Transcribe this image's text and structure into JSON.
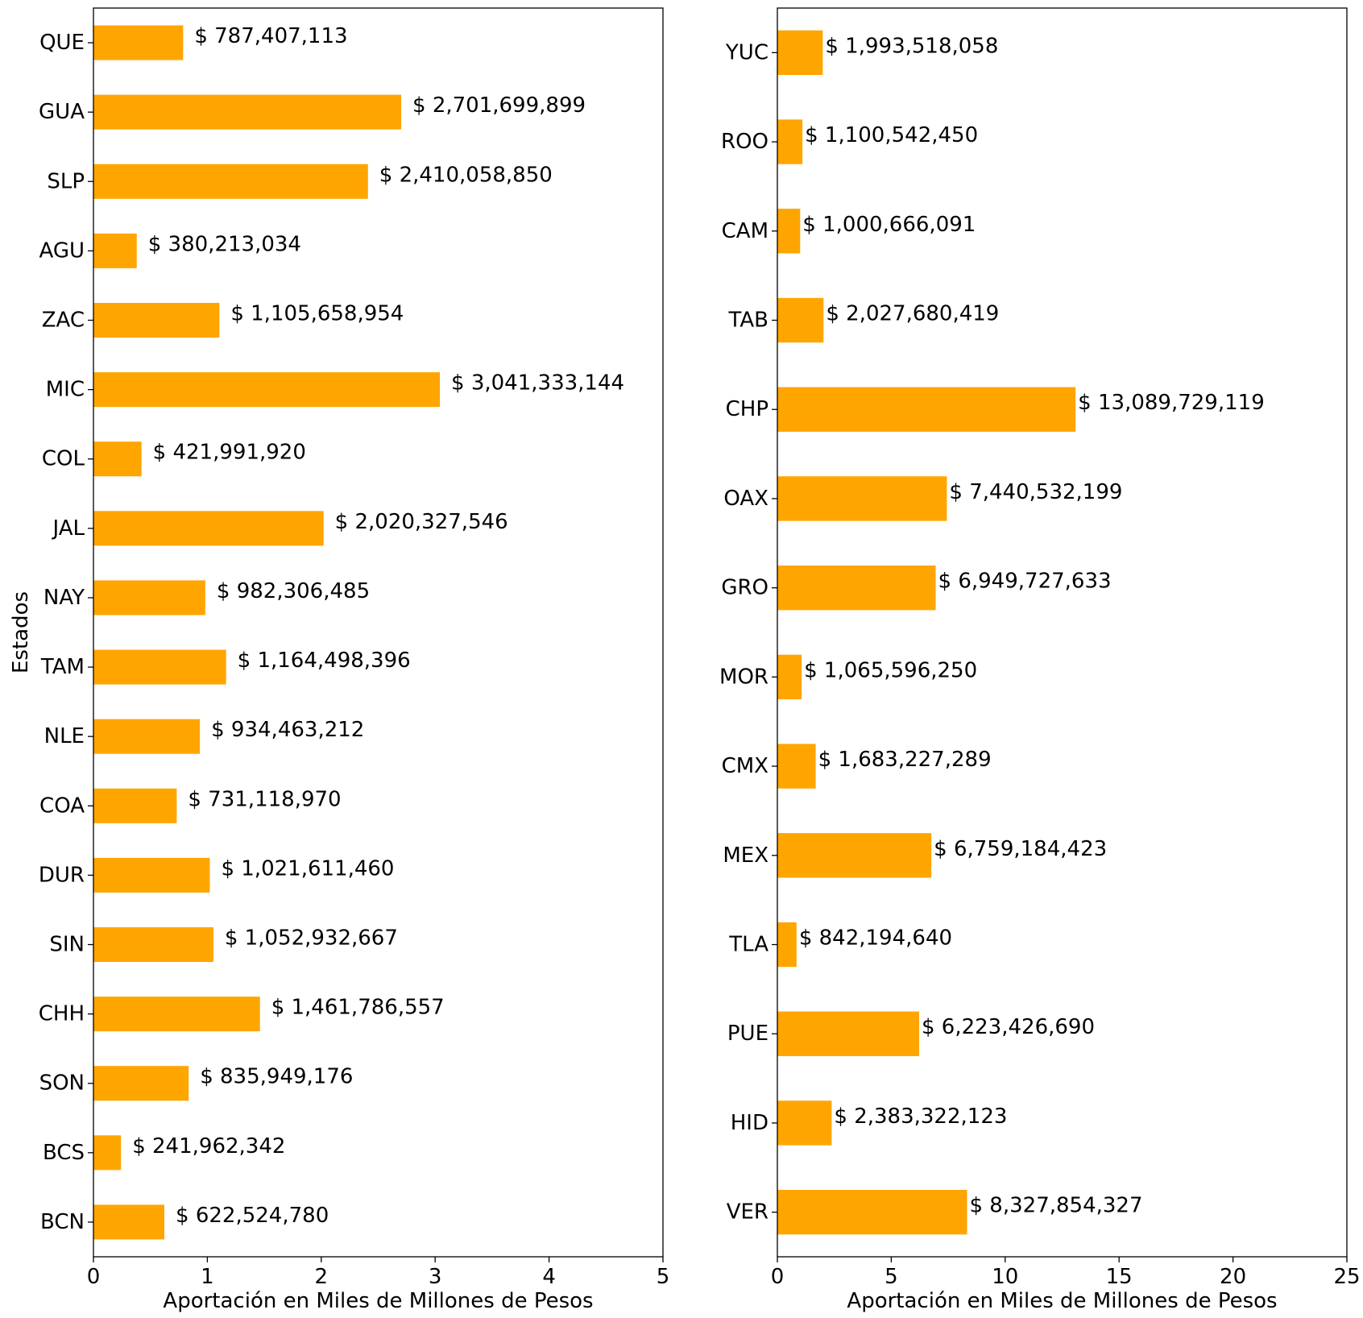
{
  "chart_data": [
    {
      "type": "bar",
      "orientation": "horizontal",
      "ylabel": "Estados",
      "xlabel": "Aportación en Miles de Millones de Pesos",
      "xlim": [
        0,
        5
      ],
      "xticks": [
        "0",
        "1",
        "2",
        "3",
        "4",
        "5"
      ],
      "grid": false,
      "bar_color": "#FFA500",
      "categories": [
        "QUE",
        "GUA",
        "SLP",
        "AGU",
        "ZAC",
        "MIC",
        "COL",
        "JAL",
        "NAY",
        "TAM",
        "NLE",
        "COA",
        "DUR",
        "SIN",
        "CHH",
        "SON",
        "BCS",
        "BCN"
      ],
      "values": [
        0.787407113,
        2.701699899,
        2.41005885,
        0.380213034,
        1.105658954,
        3.041333144,
        0.42199192,
        2.020327546,
        0.982306485,
        1.164498396,
        0.934463212,
        0.73111897,
        1.02161146,
        1.052932667,
        1.461786557,
        0.835949176,
        0.241962342,
        0.62252478
      ],
      "data_labels": [
        "$ 787,407,113",
        "$ 2,701,699,899",
        "$ 2,410,058,850",
        "$ 380,213,034",
        "$ 1,105,658,954",
        "$ 3,041,333,144",
        "$ 421,991,920",
        "$ 2,020,327,546",
        "$ 982,306,485",
        "$ 1,164,498,396",
        "$ 934,463,212",
        "$ 731,118,970",
        "$ 1,021,611,460",
        "$ 1,052,932,667",
        "$ 1,461,786,557",
        "$ 835,949,176",
        "$ 241,962,342",
        "$ 622,524,780"
      ]
    },
    {
      "type": "bar",
      "orientation": "horizontal",
      "ylabel": "",
      "xlabel": "Aportación en Miles de Millones de Pesos",
      "xlim": [
        0,
        25
      ],
      "xticks": [
        "0",
        "5",
        "10",
        "15",
        "20",
        "25"
      ],
      "grid": false,
      "bar_color": "#FFA500",
      "categories": [
        "YUC",
        "ROO",
        "CAM",
        "TAB",
        "CHP",
        "OAX",
        "GRO",
        "MOR",
        "CMX",
        "MEX",
        "TLA",
        "PUE",
        "HID",
        "VER"
      ],
      "values": [
        1.993518058,
        1.10054245,
        1.000666091,
        2.027680419,
        13.089729119,
        7.440532199,
        6.949727633,
        1.06559625,
        1.683227289,
        6.759184423,
        0.84219464,
        6.22342669,
        2.383322123,
        8.327854327
      ],
      "data_labels": [
        "$ 1,993,518,058",
        "$ 1,100,542,450",
        "$ 1,000,666,091",
        "$ 2,027,680,419",
        "$ 13,089,729,119",
        "$ 7,440,532,199",
        "$ 6,949,727,633",
        "$ 1,065,596,250",
        "$ 1,683,227,289",
        "$ 6,759,184,423",
        "$ 842,194,640",
        "$ 6,223,426,690",
        "$ 2,383,322,123",
        "$ 8,327,854,327"
      ]
    }
  ]
}
